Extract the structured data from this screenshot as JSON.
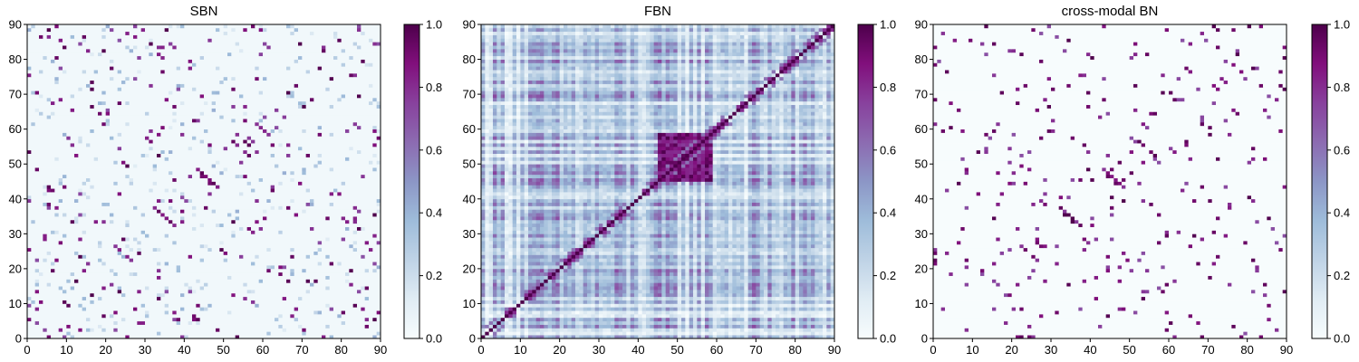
{
  "colors": {
    "colormap": [
      "#f7fcfd",
      "#e0ecf4",
      "#bfd3e6",
      "#9ebcda",
      "#8c96c6",
      "#8c6bb1",
      "#88419d",
      "#810f7c",
      "#4d004b"
    ],
    "frame": "#000000"
  },
  "chart_data": [
    {
      "type": "heatmap",
      "title": "SBN",
      "xlim": [
        0,
        90
      ],
      "ylim": [
        0,
        90
      ],
      "xticks": [
        0,
        10,
        20,
        30,
        40,
        50,
        60,
        70,
        80,
        90
      ],
      "yticks": [
        0,
        10,
        20,
        30,
        40,
        50,
        60,
        70,
        80,
        90
      ],
      "colorbar": {
        "min": 0.0,
        "max": 1.0,
        "ticks": [
          "0.0",
          "0.2",
          "0.4",
          "0.6",
          "0.8",
          "1.0"
        ]
      },
      "matrix": {
        "size": 90,
        "symmetric": true,
        "background": 0.03,
        "sparse": true,
        "diagonal_value": 0.03
      }
    },
    {
      "type": "heatmap",
      "title": "FBN",
      "xlim": [
        0,
        90
      ],
      "ylim": [
        0,
        90
      ],
      "xticks": [
        0,
        10,
        20,
        30,
        40,
        50,
        60,
        70,
        80,
        90
      ],
      "yticks": [
        0,
        10,
        20,
        30,
        40,
        50,
        60,
        70,
        80,
        90
      ],
      "colorbar": {
        "min": 0.0,
        "max": 1.0,
        "ticks": [
          "0.0",
          "0.2",
          "0.4",
          "0.6",
          "0.8",
          "1.0"
        ]
      },
      "matrix": {
        "size": 90,
        "symmetric": true,
        "background": 0.3,
        "sparse": false,
        "diagonal_value": 1.0
      }
    },
    {
      "type": "heatmap",
      "title": "cross-modal BN",
      "xlim": [
        0,
        90
      ],
      "ylim": [
        0,
        90
      ],
      "xticks": [
        0,
        10,
        20,
        30,
        40,
        50,
        60,
        70,
        80,
        90
      ],
      "yticks": [
        0,
        10,
        20,
        30,
        40,
        50,
        60,
        70,
        80,
        90
      ],
      "colorbar": {
        "min": 0.0,
        "max": 1.0,
        "ticks": [
          "0.0",
          "0.2",
          "0.4",
          "0.6",
          "0.8",
          "1.0"
        ]
      },
      "matrix": {
        "size": 90,
        "symmetric": true,
        "background": 0.0,
        "sparse": true,
        "diagonal_value": 0.0
      }
    }
  ]
}
